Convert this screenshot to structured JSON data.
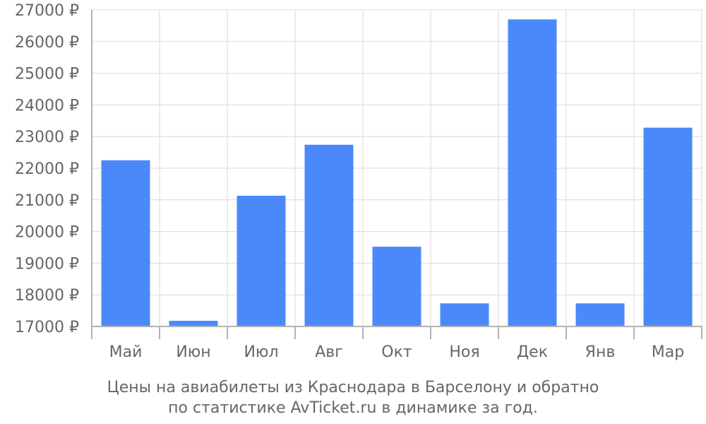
{
  "chart_data": {
    "type": "bar",
    "categories": [
      "Май",
      "Июн",
      "Июл",
      "Авг",
      "Окт",
      "Ноя",
      "Дек",
      "Янв",
      "Мар"
    ],
    "values": [
      22250,
      17180,
      21130,
      22740,
      19520,
      17730,
      26700,
      17730,
      23280
    ],
    "ylim": [
      17000,
      27000
    ],
    "y_ticks": [
      "17000 ₽",
      "18000 ₽",
      "19000 ₽",
      "20000 ₽",
      "21000 ₽",
      "22000 ₽",
      "23000 ₽",
      "24000 ₽",
      "25000 ₽",
      "26000 ₽",
      "27000 ₽"
    ],
    "caption_line1": "Цены на авиабилеты из Краснодара в Барселону и обратно",
    "caption_line2": "по статистике AvTicket.ru в динамике за год.",
    "bar_color": "#4b89fb",
    "grid": true
  }
}
